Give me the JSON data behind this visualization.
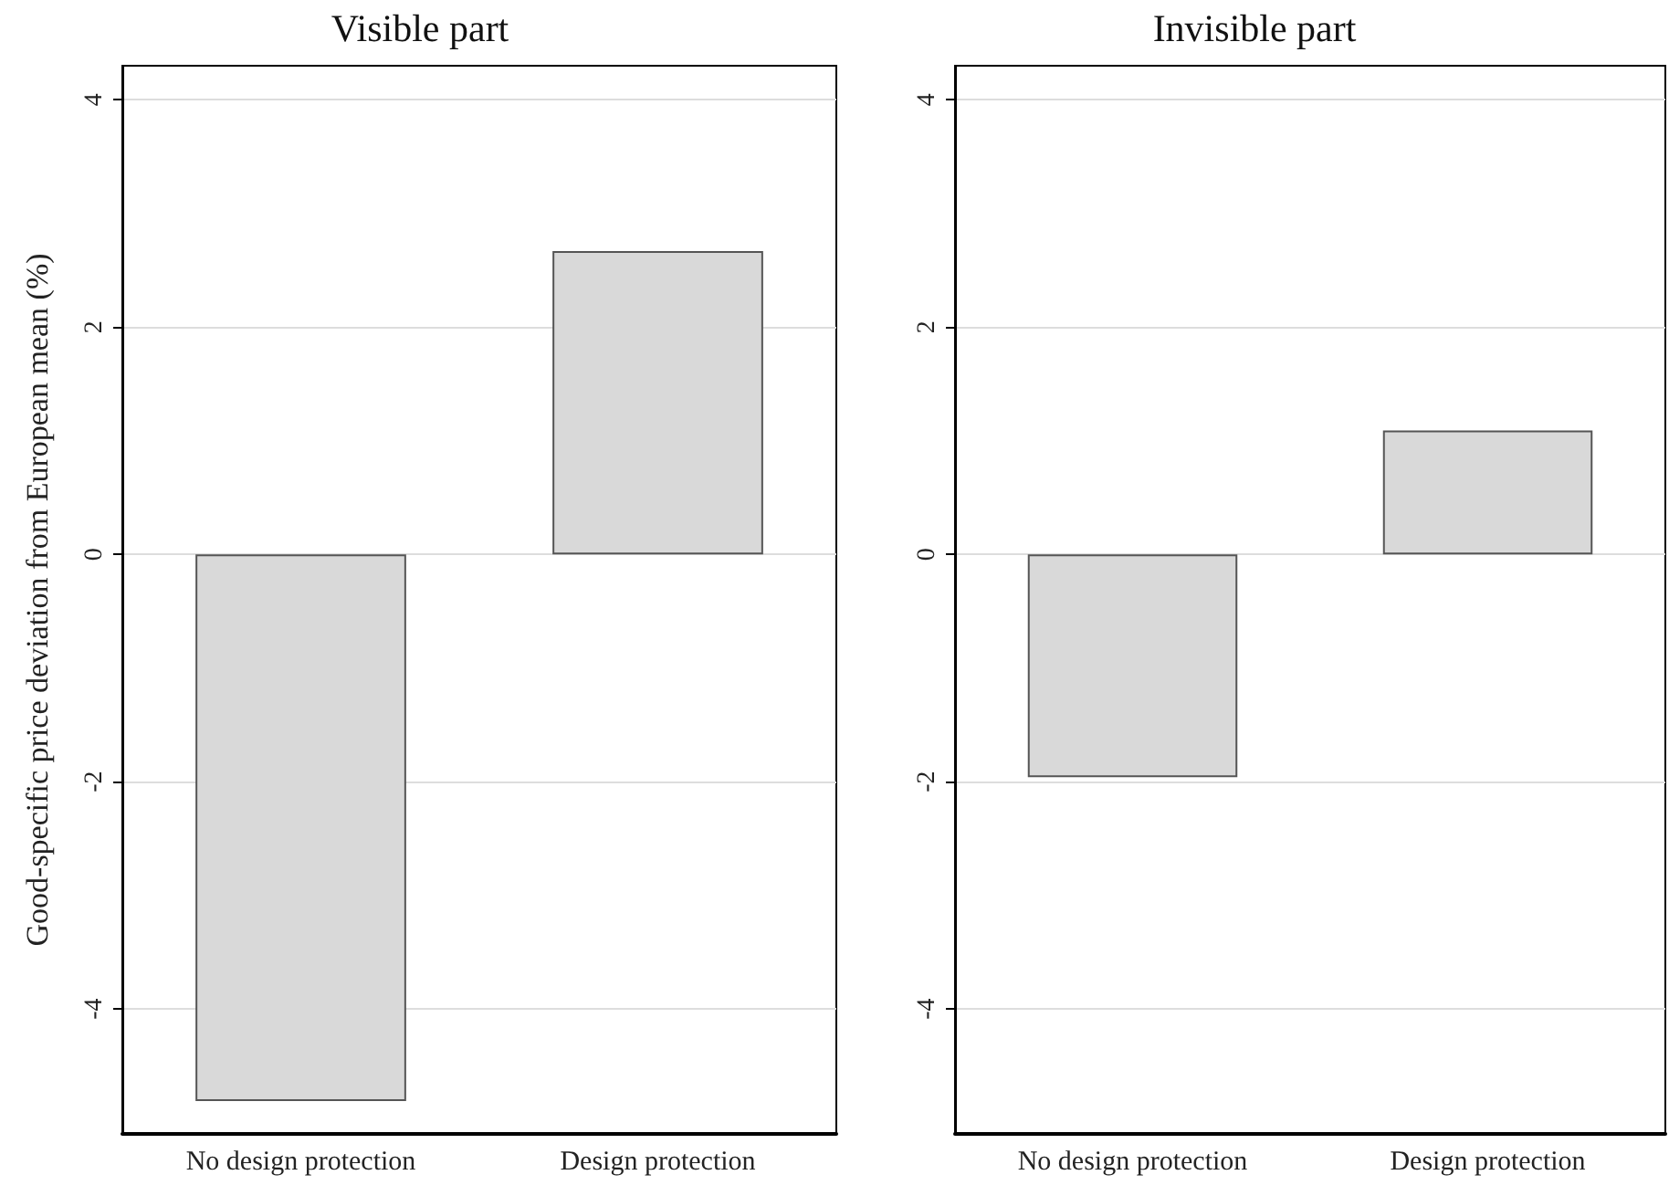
{
  "chart_data": [
    {
      "type": "bar",
      "title": "Visible part",
      "ylabel": "Good-specific price deviation from European mean (%)",
      "categories": [
        "No design protection",
        "Design protection"
      ],
      "values": [
        -4.81,
        2.67
      ],
      "color": "#d9d9d9",
      "ylim": [
        -5.1,
        4.3
      ],
      "yticks": [
        -4,
        -2,
        0,
        2,
        4
      ],
      "grid": "y"
    },
    {
      "type": "bar",
      "title": "Invisible part",
      "categories": [
        "No design protection",
        "Design protection"
      ],
      "values": [
        -1.96,
        1.09
      ],
      "color": "#d9d9d9",
      "ylim": [
        -5.1,
        4.3
      ],
      "yticks": [
        -4,
        -2,
        0,
        2,
        4
      ],
      "grid": "y"
    }
  ]
}
